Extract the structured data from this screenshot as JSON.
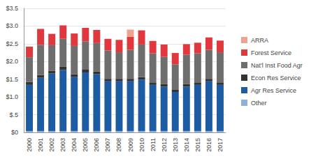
{
  "chart_data": {
    "type": "bar",
    "stacked": true,
    "grid": true,
    "legend": "right",
    "categories": [
      "2000",
      "2001",
      "2002",
      "2003",
      "2004",
      "2005",
      "2006",
      "2007",
      "2008",
      "2009",
      "2010",
      "2011",
      "2012",
      "2013",
      "2014",
      "2015",
      "2016",
      "2017"
    ],
    "ylim": [
      0,
      3.5
    ],
    "yticks": [
      {
        "value": 0,
        "label": "$0"
      },
      {
        "value": 0.5,
        "label": "$.5"
      },
      {
        "value": 1.0,
        "label": "$1.0"
      },
      {
        "value": 1.5,
        "label": "$1.5"
      },
      {
        "value": 2.0,
        "label": "$2.0"
      },
      {
        "value": 2.5,
        "label": "$2.5"
      },
      {
        "value": 3.0,
        "label": "$3.0"
      },
      {
        "value": 3.5,
        "label": "$3.5"
      }
    ],
    "series": [
      {
        "name": "Other",
        "color": "#8fb0d8",
        "values": [
          0.04,
          0.04,
          0.04,
          0.04,
          0.04,
          0.04,
          0.04,
          0.04,
          0.04,
          0.04,
          0.04,
          0.04,
          0.04,
          0.04,
          0.04,
          0.04,
          0.04,
          0.04
        ]
      },
      {
        "name": "Agr Res Service",
        "color": "#1d5ca3",
        "values": [
          1.3,
          1.5,
          1.62,
          1.72,
          1.52,
          1.65,
          1.6,
          1.4,
          1.4,
          1.4,
          1.45,
          1.3,
          1.25,
          1.1,
          1.25,
          1.3,
          1.4,
          1.3
        ]
      },
      {
        "name": "Econ Res Service",
        "color": "#333333",
        "values": [
          0.08,
          0.08,
          0.08,
          0.1,
          0.08,
          0.08,
          0.08,
          0.07,
          0.07,
          0.07,
          0.07,
          0.07,
          0.07,
          0.06,
          0.07,
          0.07,
          0.07,
          0.07
        ]
      },
      {
        "name": "Nat'l Inst Food Agr",
        "color": "#6e6e6e",
        "values": [
          0.7,
          0.85,
          0.72,
          0.78,
          0.8,
          0.8,
          0.8,
          0.8,
          0.75,
          0.82,
          0.92,
          0.82,
          0.77,
          0.72,
          0.83,
          0.82,
          0.82,
          0.85
        ]
      },
      {
        "name": "Forest Service",
        "color": "#e0383c",
        "values": [
          0.3,
          0.45,
          0.32,
          0.38,
          0.35,
          0.38,
          0.37,
          0.33,
          0.35,
          0.37,
          0.4,
          0.35,
          0.35,
          0.32,
          0.3,
          0.3,
          0.35,
          0.33
        ]
      },
      {
        "name": "ARRA",
        "color": "#f0a290",
        "values": [
          0,
          0,
          0,
          0,
          0,
          0,
          0,
          0,
          0,
          0.2,
          0,
          0,
          0,
          0,
          0,
          0,
          0,
          0
        ]
      }
    ]
  }
}
